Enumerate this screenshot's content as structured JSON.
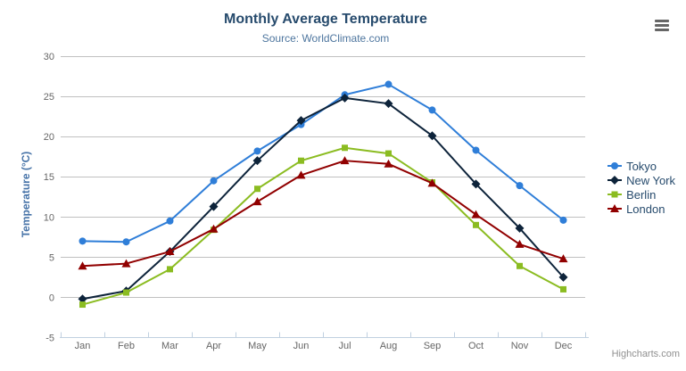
{
  "chart_data": {
    "type": "line",
    "title": "Monthly Average Temperature",
    "subtitle": "Source: WorldClimate.com",
    "xlabel": "",
    "ylabel": "Temperature (°C)",
    "ylim": [
      -5,
      30
    ],
    "ytick_step": 5,
    "grid": true,
    "legend_position": "right",
    "categories": [
      "Jan",
      "Feb",
      "Mar",
      "Apr",
      "May",
      "Jun",
      "Jul",
      "Aug",
      "Sep",
      "Oct",
      "Nov",
      "Dec"
    ],
    "series": [
      {
        "name": "Tokyo",
        "color": "#2f7ed8",
        "marker": "circle",
        "values": [
          7.0,
          6.9,
          9.5,
          14.5,
          18.2,
          21.5,
          25.2,
          26.5,
          23.3,
          18.3,
          13.9,
          9.6
        ]
      },
      {
        "name": "New York",
        "color": "#0d233a",
        "marker": "diamond",
        "values": [
          -0.2,
          0.8,
          5.7,
          11.3,
          17.0,
          22.0,
          24.8,
          24.1,
          20.1,
          14.1,
          8.6,
          2.5
        ]
      },
      {
        "name": "Berlin",
        "color": "#8bbc21",
        "marker": "square",
        "values": [
          -0.9,
          0.6,
          3.5,
          8.4,
          13.5,
          17.0,
          18.6,
          17.9,
          14.3,
          9.0,
          3.9,
          1.0
        ]
      },
      {
        "name": "London",
        "color": "#910000",
        "marker": "triangle",
        "values": [
          3.9,
          4.2,
          5.7,
          8.5,
          11.9,
          15.2,
          17.0,
          16.6,
          14.2,
          10.3,
          6.6,
          4.8
        ]
      }
    ]
  },
  "toolbar": {
    "export_menu_icon": "hamburger-icon"
  },
  "credits": {
    "label": "Highcharts.com"
  },
  "colors": {
    "title": "#274b6d",
    "subtitle": "#4d759e",
    "axis_label": "#666666",
    "axis_title": "#4572a7",
    "grid_line": "#c0c0c0",
    "axis_line": "#c0d0e0",
    "legend_text": "#274b6d",
    "credits": "#909090",
    "menu_icon": "#666666"
  }
}
